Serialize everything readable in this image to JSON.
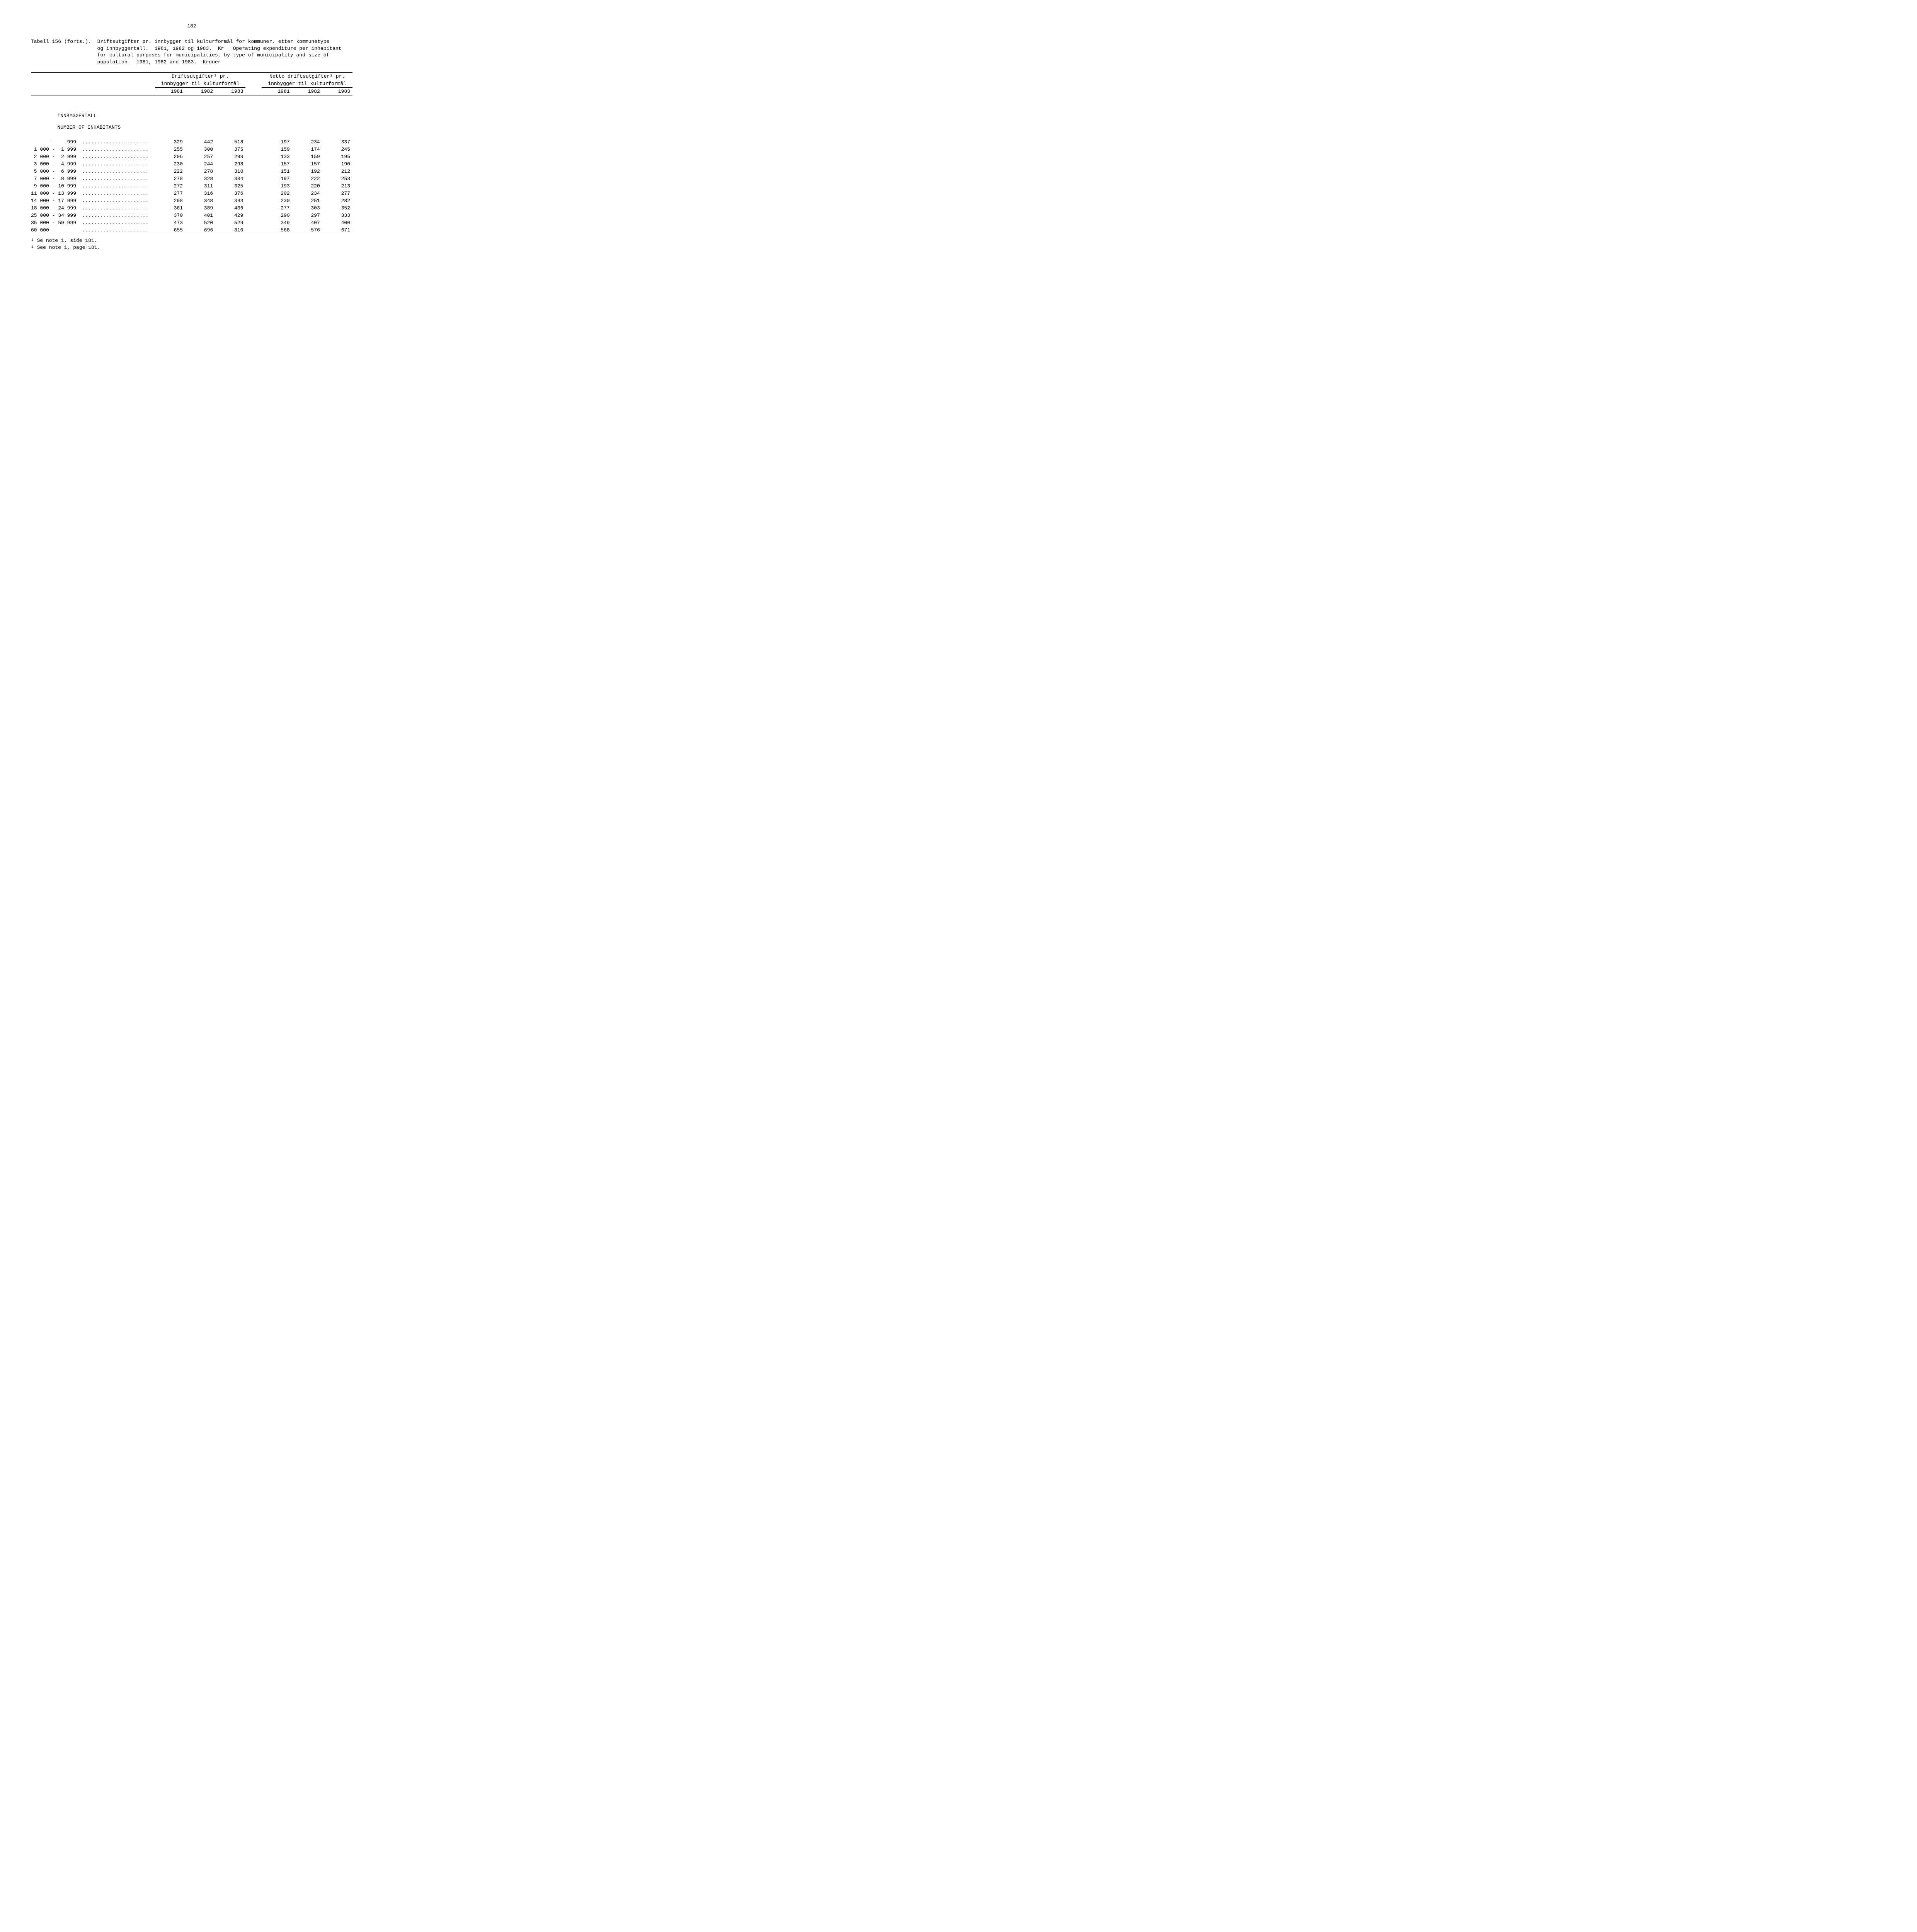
{
  "page_number": "182",
  "header": {
    "label": "Tabell 156 (forts.).  ",
    "text": "Driftsutgifter pr. innbygger til kulturformål for kommuner, etter kommunetype\nog innbyggertall.  1981, 1982 og 1983.  Kr   Operating expenditure per inhabitant\nfor cultural purposes for municipalities, by type of municipality and size of\npopulation.  1981, 1982 and 1983.  Kroner"
  },
  "table": {
    "group1_line1": "Driftsutgifter¹ pr.",
    "group1_line2": "innbygger til kulturformål",
    "group2_line1": "Netto driftsutgifter¹ pr.",
    "group2_line2": "innbygger til kulturformål",
    "years": [
      "1981",
      "1982",
      "1983",
      "1981",
      "1982",
      "1983"
    ],
    "section_title_no": "INNBYGGERTALL",
    "section_title_en": "NUMBER OF INHABITANTS",
    "rows": [
      {
        "label": "      -     999  ......................",
        "v": [
          "329",
          "442",
          "518",
          "197",
          "234",
          "337"
        ]
      },
      {
        "label": " 1 000 -  1 999  ......................",
        "v": [
          "255",
          "300",
          "375",
          "159",
          "174",
          "245"
        ]
      },
      {
        "label": " 2 000 -  2 999  ......................",
        "v": [
          "206",
          "257",
          "298",
          "133",
          "159",
          "195"
        ]
      },
      {
        "label": " 3 000 -  4 999  ......................",
        "v": [
          "230",
          "244",
          "298",
          "157",
          "157",
          "190"
        ]
      },
      {
        "label": " 5 000 -  6 999  ......................",
        "v": [
          "222",
          "278",
          "310",
          "151",
          "192",
          "212"
        ]
      },
      {
        "label": " 7 000 -  8 999  ......................",
        "v": [
          "278",
          "328",
          "384",
          "197",
          "222",
          "253"
        ]
      },
      {
        "label": " 9 000 - 10 999  ......................",
        "v": [
          "272",
          "311",
          "325",
          "193",
          "220",
          "213"
        ]
      },
      {
        "label": "11 000 - 13 999  ......................",
        "v": [
          "277",
          "316",
          "376",
          "202",
          "234",
          "277"
        ]
      },
      {
        "label": "14 000 - 17 999  ......................",
        "v": [
          "298",
          "348",
          "393",
          "230",
          "251",
          "282"
        ]
      },
      {
        "label": "18 000 - 24 999  ......................",
        "v": [
          "361",
          "389",
          "436",
          "277",
          "303",
          "352"
        ]
      },
      {
        "label": "25 000 - 34 999  ......................",
        "v": [
          "370",
          "401",
          "429",
          "290",
          "297",
          "333"
        ]
      },
      {
        "label": "35 000 - 59 999  ......................",
        "v": [
          "473",
          "520",
          "529",
          "349",
          "407",
          "400"
        ]
      },
      {
        "label": "60 000 -         ......................",
        "v": [
          "655",
          "696",
          "810",
          "568",
          "576",
          "671"
        ]
      }
    ]
  },
  "footnotes": {
    "line1": "¹ Se note 1, side 181.",
    "line2": "¹ See note 1, page 181."
  }
}
